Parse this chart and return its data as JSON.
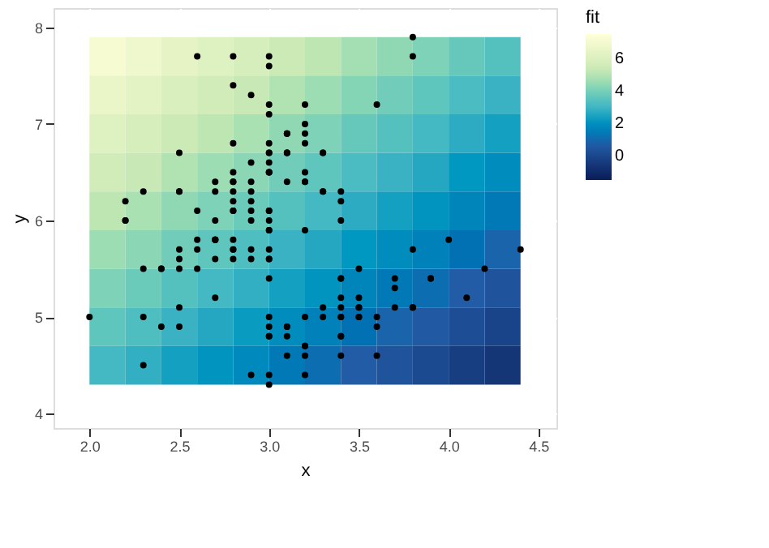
{
  "chart_data": [
    {
      "type": "heatmap",
      "clabel": "fit",
      "clim": [
        -1.5,
        7.5
      ],
      "cticks": [
        0,
        2,
        4,
        6
      ],
      "colors": [
        "#081d58",
        "#225ea8",
        "#41b6c4",
        "#c7e9b4",
        "#ffffd9"
      ],
      "categories": [
        null,
        null,
        null,
        null,
        null,
        null,
        null,
        null,
        null,
        null,
        null,
        null
      ],
      "y_categories": [
        null,
        null,
        null,
        null,
        null,
        null,
        null,
        null,
        null
      ],
      "cells": [
        [
          7.1,
          6.8,
          6.4,
          6.1,
          5.8,
          5.4,
          5.1,
          4.7,
          4.4,
          4.1,
          3.7,
          3.4
        ],
        [
          6.6,
          6.3,
          5.9,
          5.6,
          5.3,
          4.9,
          4.6,
          4.2,
          3.9,
          3.6,
          3.2,
          2.9
        ],
        [
          6.1,
          5.8,
          5.4,
          5.1,
          4.8,
          4.4,
          4.1,
          3.7,
          3.4,
          3.1,
          2.7,
          2.4
        ],
        [
          5.6,
          5.3,
          4.9,
          4.6,
          4.3,
          3.9,
          3.6,
          3.2,
          2.9,
          2.6,
          2.2,
          1.9
        ],
        [
          5.1,
          4.8,
          4.4,
          4.1,
          3.8,
          3.4,
          3.1,
          2.7,
          2.4,
          2.1,
          1.7,
          1.4
        ],
        [
          4.6,
          4.3,
          3.9,
          3.6,
          3.3,
          2.9,
          2.6,
          2.2,
          1.9,
          1.6,
          1.2,
          0.9
        ],
        [
          4.1,
          3.8,
          3.4,
          3.1,
          2.8,
          2.4,
          2.1,
          1.7,
          1.4,
          1.1,
          0.7,
          0.4
        ],
        [
          3.6,
          3.3,
          2.9,
          2.6,
          2.3,
          1.9,
          1.6,
          1.2,
          0.9,
          0.6,
          0.2,
          -0.1
        ],
        [
          3.1,
          2.8,
          2.4,
          2.1,
          1.8,
          1.4,
          1.1,
          0.7,
          0.4,
          0.1,
          -0.3,
          -0.6
        ]
      ]
    },
    {
      "type": "scatter",
      "xlabel": "x",
      "ylabel": "y",
      "xlim": [
        1.8,
        4.6
      ],
      "ylim": [
        3.85,
        8.2
      ],
      "xticks": [
        {
          "value": 2,
          "label": "2.0"
        },
        {
          "value": 2.5,
          "label": "2.5"
        },
        {
          "value": 3,
          "label": "3.0"
        },
        {
          "value": 3.5,
          "label": "3.5"
        },
        {
          "value": 4,
          "label": "4.0"
        },
        {
          "value": 4.5,
          "label": "4.5"
        }
      ],
      "yticks": [
        4,
        5,
        6,
        7,
        8
      ],
      "grid": true,
      "series": [
        {
          "color": "#000000",
          "marker": "circle",
          "x": [
            3.5,
            3.0,
            3.2,
            3.1,
            3.6,
            3.9,
            3.4,
            3.4,
            2.9,
            3.1,
            3.7,
            3.4,
            3.0,
            3.0,
            4.0,
            4.4,
            3.9,
            3.5,
            3.8,
            3.8,
            3.4,
            3.7,
            3.6,
            3.3,
            3.4,
            3.0,
            3.4,
            3.5,
            3.4,
            3.2,
            3.1,
            3.4,
            4.1,
            4.2,
            3.1,
            3.2,
            3.5,
            3.6,
            3.0,
            3.4,
            3.5,
            2.3,
            3.2,
            3.5,
            3.8,
            3.0,
            3.8,
            3.2,
            3.7,
            3.3,
            3.2,
            3.2,
            3.1,
            2.3,
            2.8,
            2.8,
            3.3,
            2.4,
            2.9,
            2.7,
            2.0,
            3.0,
            2.2,
            2.9,
            2.9,
            3.1,
            3.0,
            2.7,
            2.2,
            2.5,
            3.2,
            2.8,
            2.5,
            2.8,
            2.9,
            3.0,
            2.8,
            3.0,
            2.9,
            2.6,
            2.4,
            2.4,
            2.7,
            2.7,
            3.0,
            3.4,
            3.1,
            2.3,
            3.0,
            2.5,
            2.6,
            3.0,
            2.6,
            2.3,
            2.7,
            3.0,
            2.9,
            2.9,
            2.5,
            2.8,
            3.3,
            2.7,
            3.0,
            2.9,
            3.0,
            3.0,
            2.5,
            2.9,
            2.5,
            3.6,
            3.2,
            2.7,
            3.0,
            2.5,
            2.8,
            3.2,
            3.0,
            3.8,
            2.6,
            2.2,
            3.2,
            2.8,
            2.8,
            2.7,
            3.3,
            3.2,
            2.8,
            3.0,
            2.8,
            3.0,
            2.8,
            3.8,
            2.8,
            2.8,
            2.6,
            3.0,
            3.4,
            3.1,
            3.0,
            3.1,
            3.1,
            3.1,
            2.7,
            3.2,
            3.3,
            3.0,
            2.5,
            3.0,
            3.4,
            3.0
          ],
          "values": [
            5.1,
            4.9,
            4.7,
            4.6,
            5.0,
            5.4,
            4.6,
            5.0,
            4.4,
            4.9,
            5.4,
            4.8,
            4.8,
            4.3,
            5.8,
            5.7,
            5.4,
            5.1,
            5.7,
            5.1,
            5.4,
            5.1,
            4.6,
            5.1,
            4.8,
            5.0,
            5.0,
            5.2,
            5.2,
            4.7,
            4.8,
            5.4,
            5.2,
            5.5,
            4.9,
            5.0,
            5.5,
            4.9,
            4.4,
            5.1,
            5.0,
            4.5,
            4.4,
            5.0,
            5.1,
            4.8,
            5.1,
            4.6,
            5.3,
            5.0,
            7.0,
            6.4,
            6.9,
            5.5,
            6.5,
            5.7,
            6.3,
            4.9,
            6.6,
            5.2,
            5.0,
            5.9,
            6.0,
            6.1,
            5.6,
            6.7,
            5.6,
            5.8,
            6.2,
            5.6,
            5.9,
            6.1,
            6.3,
            6.1,
            6.4,
            6.6,
            6.8,
            6.7,
            6.0,
            5.7,
            5.5,
            5.5,
            5.8,
            6.0,
            5.4,
            6.0,
            6.7,
            6.3,
            5.6,
            5.5,
            5.5,
            6.1,
            5.8,
            5.0,
            5.6,
            5.7,
            5.7,
            6.2,
            5.1,
            5.7,
            6.3,
            5.8,
            7.1,
            6.3,
            6.5,
            7.6,
            4.9,
            7.3,
            6.7,
            7.2,
            6.5,
            6.4,
            6.8,
            5.7,
            5.8,
            6.4,
            6.5,
            7.7,
            7.7,
            6.0,
            6.9,
            5.6,
            7.7,
            6.3,
            6.7,
            7.2,
            6.2,
            6.1,
            6.4,
            7.2,
            7.4,
            7.9,
            6.4,
            6.3,
            6.1,
            7.7,
            6.3,
            6.4,
            6.0,
            6.9,
            6.7,
            6.9,
            5.8,
            6.8,
            6.7,
            6.7,
            6.3,
            6.5,
            6.2,
            5.9
          ]
        }
      ]
    }
  ]
}
